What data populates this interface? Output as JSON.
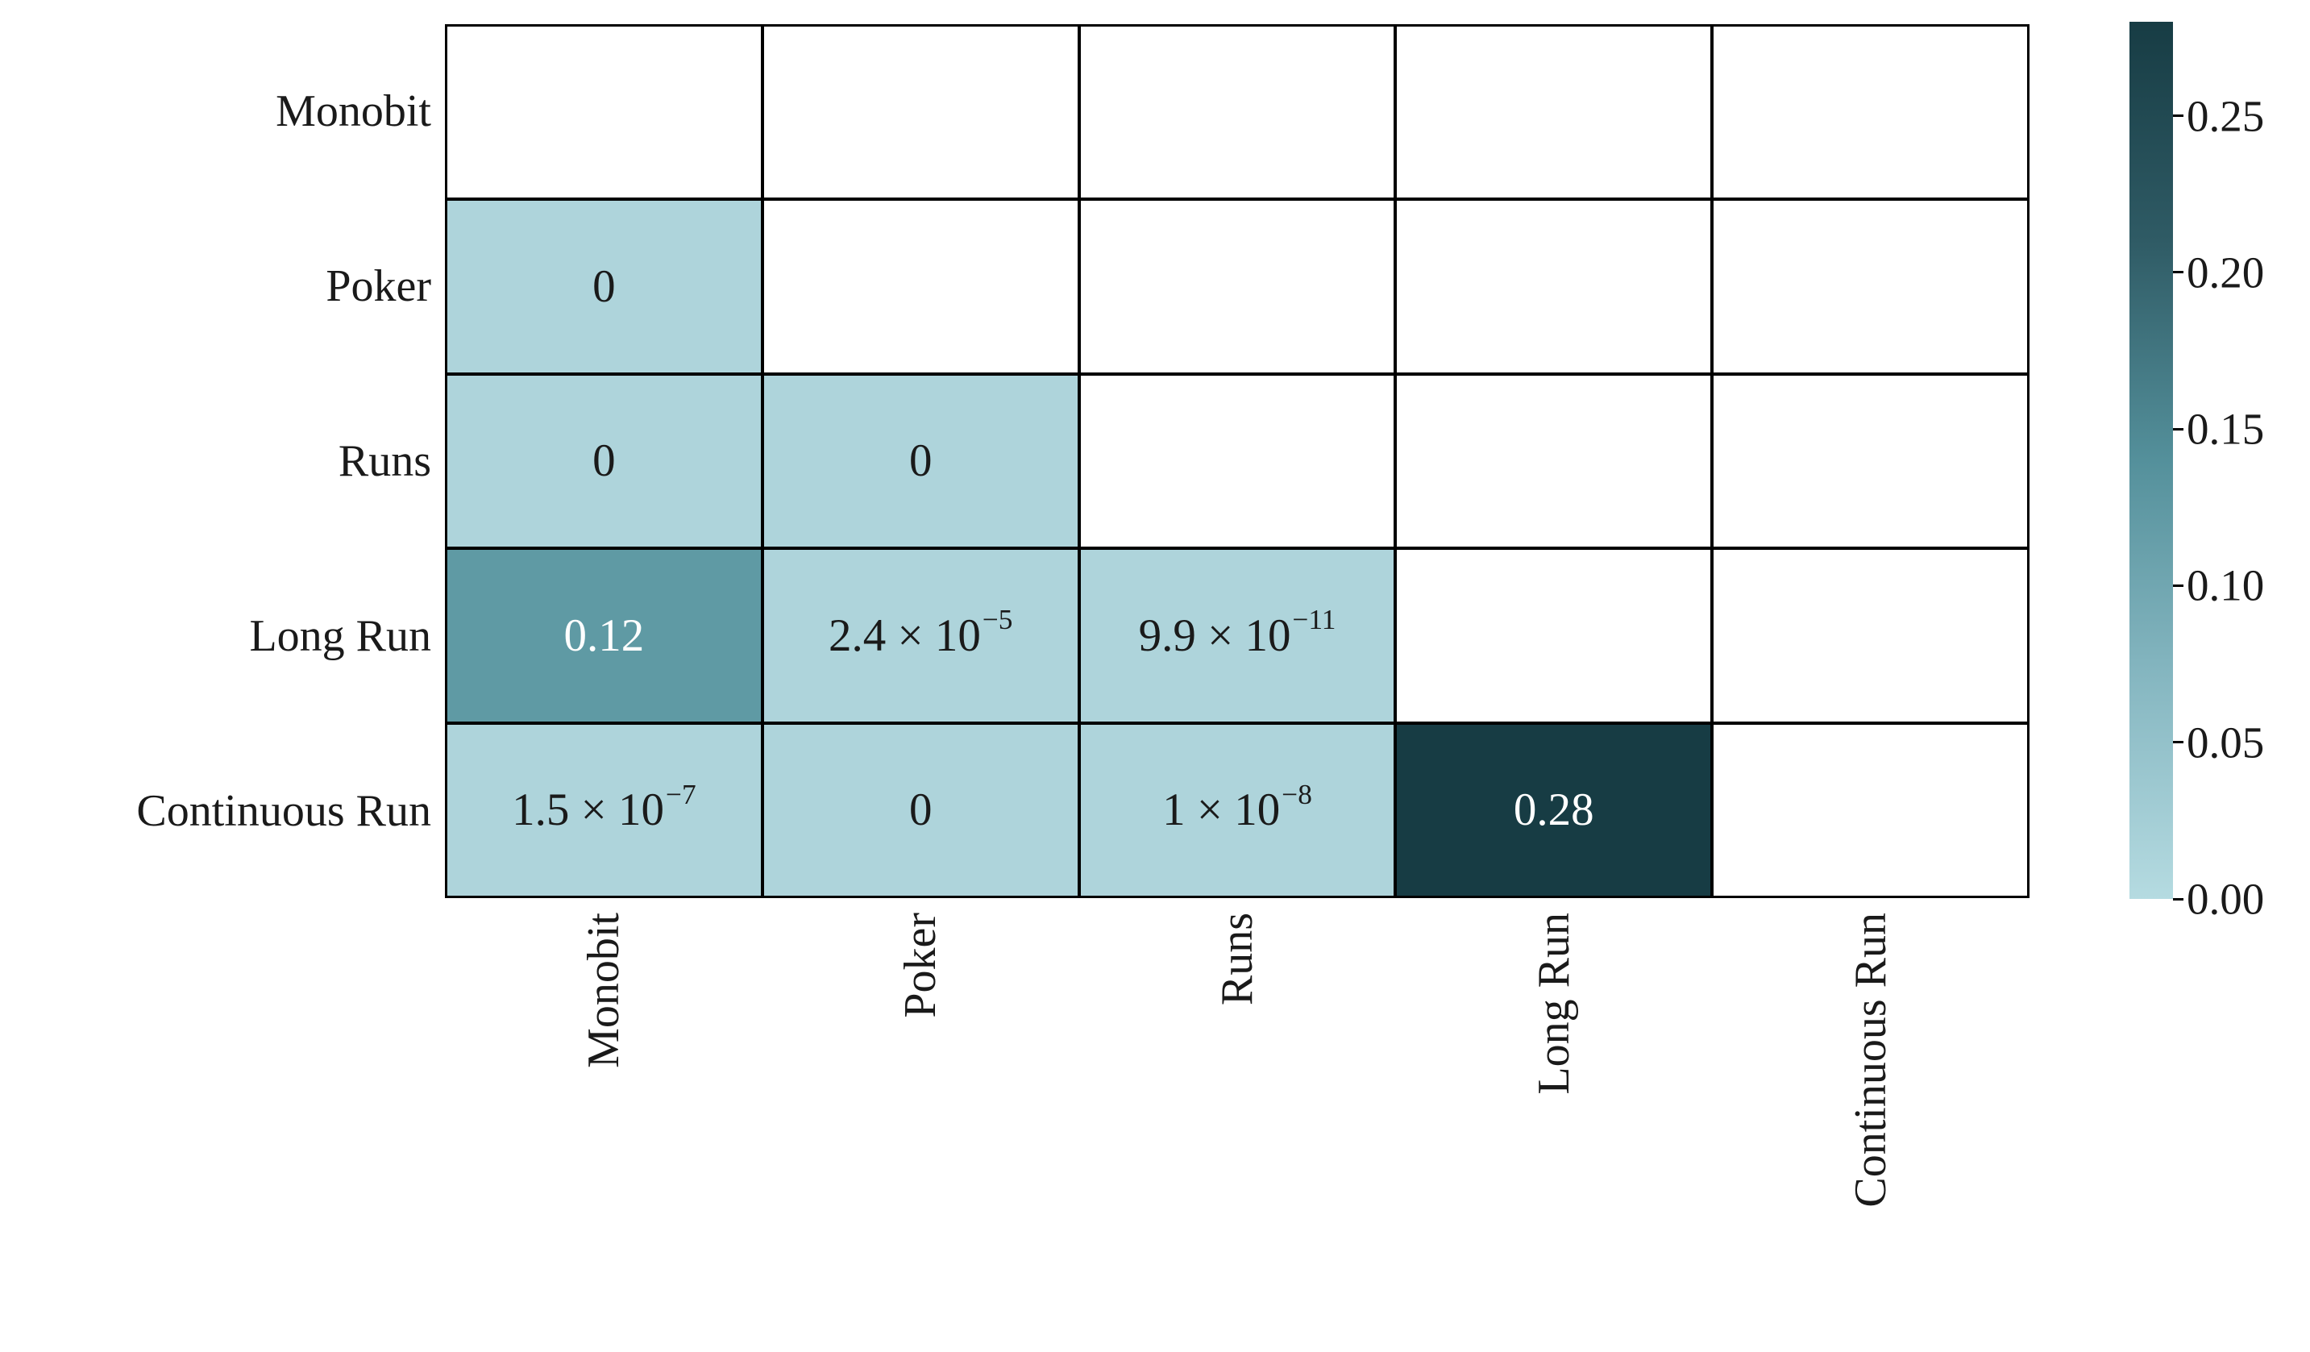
{
  "figure": {
    "background": "#ffffff",
    "grid_line_color": "#000000",
    "empty_cell_color": "#ffffff",
    "label_text_color": "#1a1a1a"
  },
  "chart_data": {
    "type": "heatmap",
    "title": "",
    "xlabel": "",
    "ylabel": "",
    "rows": [
      "Monobit",
      "Poker",
      "Runs",
      "Long Run",
      "Continuous Run"
    ],
    "cols": [
      "Monobit",
      "Poker",
      "Runs",
      "Long Run",
      "Continuous Run"
    ],
    "mask": "diagonal and upper triangle are empty (white)",
    "cells": [
      {
        "row": 1,
        "col": 0,
        "value": 0,
        "label": "0",
        "sup": "",
        "bg": "#aed4db",
        "fg": "#1a1a1a"
      },
      {
        "row": 2,
        "col": 0,
        "value": 0,
        "label": "0",
        "sup": "",
        "bg": "#aed4db",
        "fg": "#1a1a1a"
      },
      {
        "row": 2,
        "col": 1,
        "value": 0,
        "label": "0",
        "sup": "",
        "bg": "#aed4db",
        "fg": "#1a1a1a"
      },
      {
        "row": 3,
        "col": 0,
        "value": 0.12,
        "label": "0.12",
        "sup": "",
        "bg": "#5f9aa4",
        "fg": "#ffffff"
      },
      {
        "row": 3,
        "col": 1,
        "value": 2.4e-05,
        "label": "2.4 × 10",
        "sup": "−5",
        "bg": "#aed4db",
        "fg": "#1a1a1a"
      },
      {
        "row": 3,
        "col": 2,
        "value": 9.9e-11,
        "label": "9.9 × 10",
        "sup": "−11",
        "bg": "#aed4db",
        "fg": "#1a1a1a"
      },
      {
        "row": 4,
        "col": 0,
        "value": 1.5e-07,
        "label": "1.5 × 10",
        "sup": "−7",
        "bg": "#aed4db",
        "fg": "#1a1a1a"
      },
      {
        "row": 4,
        "col": 1,
        "value": 0,
        "label": "0",
        "sup": "",
        "bg": "#aed4db",
        "fg": "#1a1a1a"
      },
      {
        "row": 4,
        "col": 2,
        "value": 1e-08,
        "label": "1 × 10",
        "sup": "−8",
        "bg": "#aed4db",
        "fg": "#1a1a1a"
      },
      {
        "row": 4,
        "col": 3,
        "value": 0.28,
        "label": "0.28",
        "sup": "",
        "bg": "#173c44",
        "fg": "#ffffff"
      }
    ],
    "colorbar": {
      "position": "right",
      "vmin": 0.0,
      "vmax": 0.28,
      "ticks": [
        {
          "value": 0.0,
          "label": "0.00"
        },
        {
          "value": 0.05,
          "label": "0.05"
        },
        {
          "value": 0.1,
          "label": "0.10"
        },
        {
          "value": 0.15,
          "label": "0.15"
        },
        {
          "value": 0.2,
          "label": "0.20"
        },
        {
          "value": 0.25,
          "label": "0.25"
        }
      ],
      "gradient_top_to_bottom": [
        "#173c44",
        "#2f5b65",
        "#54909b",
        "#86b7c1",
        "#b5dbe1"
      ]
    }
  }
}
